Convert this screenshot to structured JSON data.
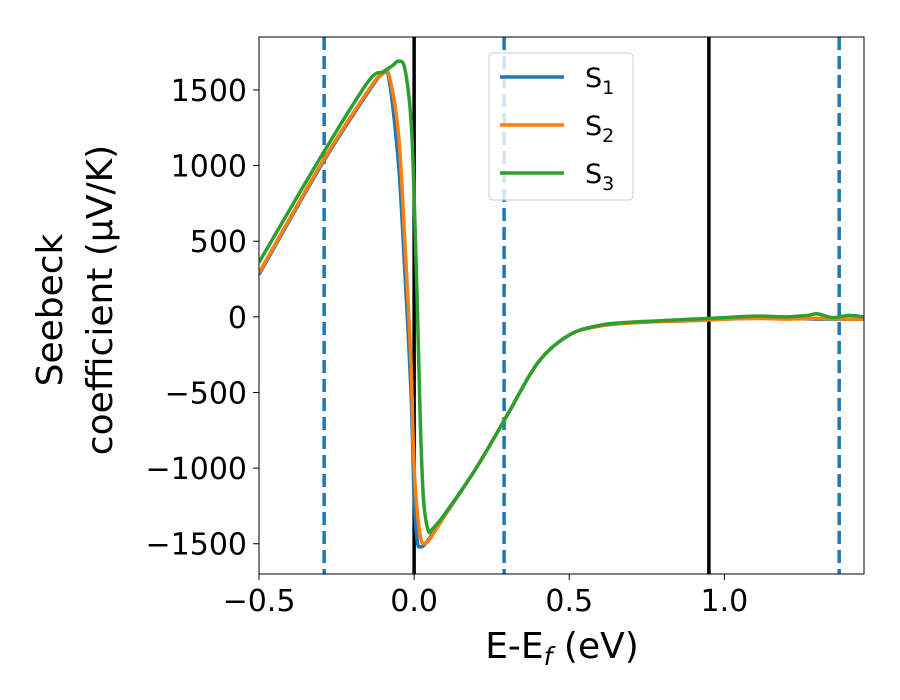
{
  "chart_data": {
    "type": "line",
    "title": "",
    "xlabel": "E-E",
    "xlabel_sub": "f",
    "xlabel_unit": " (eV)",
    "ylabel_line1": "Seebeck",
    "ylabel_line2": "coefficient  (μV/K)",
    "xlim": [
      -0.5,
      1.45
    ],
    "ylim": [
      -1700,
      1850
    ],
    "x_ticks": [
      -0.5,
      0.0,
      0.5,
      1.0
    ],
    "x_tick_labels": [
      "−0.5",
      "0.0",
      "0.5",
      "1.0"
    ],
    "y_ticks": [
      -1500,
      -1000,
      -500,
      0,
      500,
      1000,
      1500
    ],
    "y_tick_labels": [
      "−1500",
      "−1000",
      "−500",
      "0",
      "500",
      "1000",
      "1500"
    ],
    "grid": false,
    "legend_position": "top-center",
    "vlines_dashed": [
      -0.29,
      0.29,
      1.37
    ],
    "vlines_solid": [
      0.0,
      0.95
    ],
    "vline_dashed_color": "#1f77b4",
    "vline_solid_color": "#000000",
    "series": [
      {
        "name": "S",
        "sub": "1",
        "color": "#1f77b4",
        "points": [
          [
            -0.5,
            280
          ],
          [
            -0.3,
            1000
          ],
          [
            -0.15,
            1480
          ],
          [
            -0.1,
            1610
          ],
          [
            -0.08,
            1560
          ],
          [
            -0.05,
            1000
          ],
          [
            -0.03,
            300
          ],
          [
            -0.01,
            -500
          ],
          [
            0.0,
            -1200
          ],
          [
            0.01,
            -1480
          ],
          [
            0.02,
            -1520
          ],
          [
            0.04,
            -1490
          ],
          [
            0.1,
            -1310
          ],
          [
            0.2,
            -1000
          ],
          [
            0.3,
            -650
          ],
          [
            0.4,
            -300
          ],
          [
            0.5,
            -120
          ],
          [
            0.6,
            -60
          ],
          [
            0.7,
            -40
          ],
          [
            0.8,
            -30
          ],
          [
            0.9,
            -25
          ],
          [
            1.0,
            -15
          ],
          [
            1.1,
            -10
          ],
          [
            1.2,
            -10
          ],
          [
            1.3,
            -15
          ],
          [
            1.4,
            -15
          ],
          [
            1.45,
            -15
          ]
        ]
      },
      {
        "name": "S",
        "sub": "2",
        "color": "#ff7f0e",
        "points": [
          [
            -0.5,
            290
          ],
          [
            -0.3,
            1010
          ],
          [
            -0.15,
            1490
          ],
          [
            -0.1,
            1615
          ],
          [
            -0.08,
            1590
          ],
          [
            -0.05,
            1200
          ],
          [
            -0.03,
            500
          ],
          [
            -0.01,
            -300
          ],
          [
            0.0,
            -1000
          ],
          [
            0.02,
            -1450
          ],
          [
            0.04,
            -1490
          ],
          [
            0.06,
            -1440
          ],
          [
            0.1,
            -1310
          ],
          [
            0.2,
            -1000
          ],
          [
            0.3,
            -650
          ],
          [
            0.4,
            -300
          ],
          [
            0.5,
            -120
          ],
          [
            0.6,
            -60
          ],
          [
            0.7,
            -40
          ],
          [
            0.8,
            -30
          ],
          [
            0.9,
            -25
          ],
          [
            1.0,
            -15
          ],
          [
            1.1,
            -10
          ],
          [
            1.2,
            -15
          ],
          [
            1.3,
            -10
          ],
          [
            1.4,
            -15
          ],
          [
            1.45,
            -15
          ]
        ]
      },
      {
        "name": "S",
        "sub": "3",
        "color": "#2ca02c",
        "points": [
          [
            -0.5,
            360
          ],
          [
            -0.3,
            1060
          ],
          [
            -0.15,
            1550
          ],
          [
            -0.1,
            1620
          ],
          [
            -0.07,
            1660
          ],
          [
            -0.05,
            1690
          ],
          [
            -0.03,
            1640
          ],
          [
            -0.01,
            1300
          ],
          [
            0.0,
            800
          ],
          [
            0.01,
            100
          ],
          [
            0.02,
            -700
          ],
          [
            0.03,
            -1200
          ],
          [
            0.045,
            -1410
          ],
          [
            0.06,
            -1400
          ],
          [
            0.1,
            -1300
          ],
          [
            0.2,
            -1000
          ],
          [
            0.3,
            -650
          ],
          [
            0.4,
            -300
          ],
          [
            0.5,
            -120
          ],
          [
            0.6,
            -55
          ],
          [
            0.7,
            -35
          ],
          [
            0.8,
            -25
          ],
          [
            0.9,
            -15
          ],
          [
            1.0,
            -5
          ],
          [
            1.1,
            5
          ],
          [
            1.2,
            0
          ],
          [
            1.27,
            10
          ],
          [
            1.3,
            20
          ],
          [
            1.35,
            -5
          ],
          [
            1.4,
            10
          ],
          [
            1.45,
            0
          ]
        ]
      }
    ]
  }
}
